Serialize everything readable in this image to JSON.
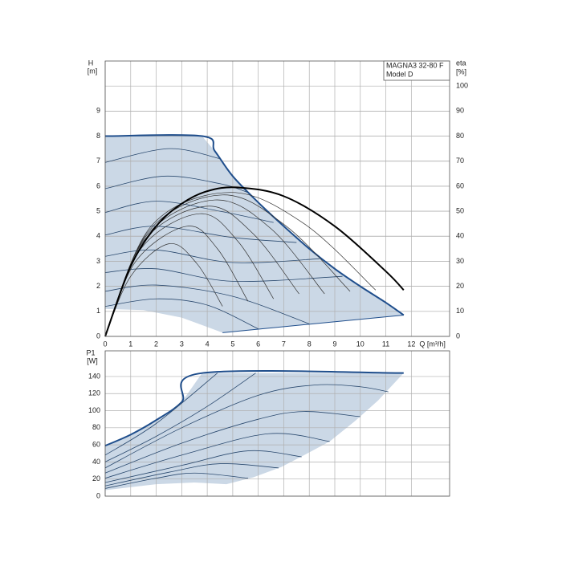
{
  "chart_data": [
    {
      "type": "line",
      "xlabel": "Q [m³/h]",
      "ylabel": "H",
      "yunit": "[m]",
      "y2label": "eta",
      "y2unit": "[%]",
      "legend_lines": [
        "MAGNA3 32-80 F",
        "Model D"
      ],
      "xlim": [
        0,
        13.5
      ],
      "ylim": [
        0,
        11
      ],
      "y2lim": [
        0,
        110
      ],
      "xticks": [
        0,
        1,
        2,
        3,
        4,
        5,
        6,
        7,
        8,
        9,
        10,
        11,
        12
      ],
      "yticks": [
        0,
        1,
        2,
        3,
        4,
        5,
        6,
        7,
        8,
        9
      ],
      "y2ticks": [
        0,
        10,
        20,
        30,
        40,
        50,
        60,
        70,
        80,
        90,
        100
      ],
      "grid": true,
      "region": {
        "color": "#cbd8e6",
        "x": [
          0,
          3.8,
          4.3,
          5,
          6,
          7,
          8,
          9,
          10,
          11,
          11.7,
          4.6,
          3,
          1.5,
          0
        ],
        "values": [
          8,
          8,
          7.4,
          6.4,
          5.35,
          4.4,
          3.5,
          2.7,
          2,
          1.35,
          0.85,
          0.15,
          0.75,
          1.05,
          1.1
        ]
      },
      "series": [
        {
          "color": "#1f4e8c",
          "line_width": 2,
          "x": [
            0,
            3.8,
            4.3,
            5,
            6,
            7,
            8,
            9,
            10,
            11,
            11.7
          ],
          "values": [
            8,
            8,
            7.4,
            6.4,
            5.35,
            4.4,
            3.5,
            2.7,
            2,
            1.35,
            0.85
          ]
        },
        {
          "color": "#1f4e8c",
          "line_width": 1,
          "x": [
            4.6,
            11.7
          ],
          "values": [
            0.15,
            0.85
          ]
        },
        {
          "color": "#2b4a6f",
          "line_width": 0.8,
          "x": [
            0,
            2.5,
            4.5
          ],
          "values": [
            6.95,
            7.5,
            7.1
          ]
        },
        {
          "color": "#2b4a6f",
          "line_width": 0.8,
          "x": [
            0,
            2.3,
            4.5,
            5.6
          ],
          "values": [
            5.9,
            6.4,
            6.1,
            5.75
          ]
        },
        {
          "color": "#2b4a6f",
          "line_width": 0.8,
          "x": [
            0,
            2,
            4.5,
            6.6
          ],
          "values": [
            4.95,
            5.4,
            5,
            4.55
          ]
        },
        {
          "color": "#2b4a6f",
          "line_width": 0.8,
          "x": [
            0,
            2,
            5,
            7.5
          ],
          "values": [
            4.05,
            4.4,
            3.95,
            3.75
          ]
        },
        {
          "color": "#2b4a6f",
          "line_width": 0.8,
          "x": [
            0,
            2,
            5,
            8.4
          ],
          "values": [
            3.2,
            3.45,
            2.95,
            3.1
          ]
        },
        {
          "color": "#2b4a6f",
          "line_width": 0.8,
          "x": [
            0,
            2,
            5,
            9.3
          ],
          "values": [
            2.55,
            2.7,
            2.2,
            2.4
          ]
        },
        {
          "color": "#2b4a6f",
          "line_width": 0.8,
          "x": [
            0,
            2,
            5,
            8
          ],
          "values": [
            1.8,
            2.05,
            1.6,
            0.5
          ]
        },
        {
          "color": "#2b4a6f",
          "line_width": 0.8,
          "x": [
            0,
            2,
            4,
            6
          ],
          "values": [
            1.2,
            1.5,
            1.25,
            0.3
          ]
        },
        {
          "color": "#333333",
          "line_width": 0.7,
          "axis": "y2",
          "x": [
            0,
            1,
            2.5,
            3.6,
            4.6
          ],
          "values": [
            0,
            24,
            37,
            29,
            12
          ]
        },
        {
          "color": "#333333",
          "line_width": 0.7,
          "axis": "y2",
          "x": [
            0,
            1.2,
            3.2,
            4.4,
            5.6
          ],
          "values": [
            0,
            30,
            44,
            35,
            14
          ]
        },
        {
          "color": "#333333",
          "line_width": 0.7,
          "axis": "y2",
          "x": [
            0,
            1.4,
            3.7,
            5.2,
            6.6
          ],
          "values": [
            0,
            35,
            49,
            38,
            15
          ]
        },
        {
          "color": "#333333",
          "line_width": 0.7,
          "axis": "y2",
          "x": [
            0,
            1.5,
            4,
            5.8,
            7.6
          ],
          "values": [
            0,
            38,
            52,
            41,
            17
          ]
        },
        {
          "color": "#333333",
          "line_width": 0.7,
          "axis": "y2",
          "x": [
            0,
            1.6,
            4.3,
            6.5,
            8.6
          ],
          "values": [
            0,
            40,
            54.5,
            43,
            17
          ]
        },
        {
          "color": "#333333",
          "line_width": 0.7,
          "axis": "y2",
          "x": [
            0,
            1.7,
            4.6,
            7.1,
            9.6
          ],
          "values": [
            0,
            42,
            56.5,
            44,
            18
          ]
        },
        {
          "color": "#333333",
          "line_width": 0.7,
          "axis": "y2",
          "x": [
            0,
            1.8,
            4.9,
            7.8,
            10.6
          ],
          "values": [
            0,
            44,
            57.5,
            45,
            18.5
          ]
        },
        {
          "color": "#000000",
          "line_width": 2,
          "axis": "y2",
          "x": [
            0,
            1,
            2,
            3,
            4,
            5.2,
            7,
            9,
            11,
            11.7
          ],
          "values": [
            0,
            28,
            44,
            53,
            58,
            59.5,
            56,
            44,
            26,
            18.5
          ]
        }
      ]
    },
    {
      "type": "line",
      "ylabel": "P1",
      "yunit": "[W]",
      "xlim": [
        0,
        13.5
      ],
      "ylim": [
        0,
        170
      ],
      "xticks": [
        0,
        1,
        2,
        3,
        4,
        5,
        6,
        7,
        8,
        9,
        10,
        11,
        12
      ],
      "yticks": [
        0,
        20,
        40,
        60,
        80,
        100,
        120,
        140
      ],
      "grid": true,
      "region": {
        "color": "#cbd8e6",
        "x": [
          0,
          1,
          2,
          3,
          3.8,
          11.7,
          10.7,
          9.8,
          8.8,
          7.8,
          6.9,
          5.8,
          4.75,
          3.5,
          2,
          0
        ],
        "values": [
          59,
          72,
          89,
          110,
          144,
          144,
          112,
          88,
          64,
          48,
          34,
          22,
          14,
          16,
          14,
          7
        ]
      },
      "series": [
        {
          "color": "#1f4e8c",
          "line_width": 2,
          "x": [
            0,
            1,
            2,
            3,
            3.8,
            11.7
          ],
          "values": [
            59,
            72,
            89,
            110,
            144,
            144
          ]
        },
        {
          "color": "#2b4a6f",
          "line_width": 0.8,
          "x": [
            0,
            2,
            4.4
          ],
          "values": [
            48,
            85,
            144
          ]
        },
        {
          "color": "#2b4a6f",
          "line_width": 0.8,
          "x": [
            0,
            2,
            4,
            5.9
          ],
          "values": [
            40,
            70,
            105,
            144
          ]
        },
        {
          "color": "#2b4a6f",
          "line_width": 0.8,
          "x": [
            0,
            3,
            6,
            8.2,
            10,
            11.1
          ],
          "values": [
            33,
            80,
            118,
            130,
            128,
            122
          ]
        },
        {
          "color": "#2b4a6f",
          "line_width": 0.8,
          "x": [
            0,
            3,
            6,
            7.8,
            10
          ],
          "values": [
            27,
            62,
            90,
            99,
            93
          ]
        },
        {
          "color": "#2b4a6f",
          "line_width": 0.8,
          "x": [
            0,
            3,
            6.4,
            8.8
          ],
          "values": [
            21,
            48,
            73,
            64
          ]
        },
        {
          "color": "#2b4a6f",
          "line_width": 0.8,
          "x": [
            0,
            3,
            5.6,
            7.7
          ],
          "values": [
            16,
            36,
            53,
            46
          ]
        },
        {
          "color": "#2b4a6f",
          "line_width": 0.8,
          "x": [
            0,
            2.5,
            4.5,
            6.8
          ],
          "values": [
            12,
            28,
            38,
            33
          ]
        },
        {
          "color": "#2b4a6f",
          "line_width": 0.8,
          "x": [
            0,
            2,
            3.5,
            5.6
          ],
          "values": [
            9,
            21,
            27,
            21
          ]
        }
      ]
    }
  ]
}
